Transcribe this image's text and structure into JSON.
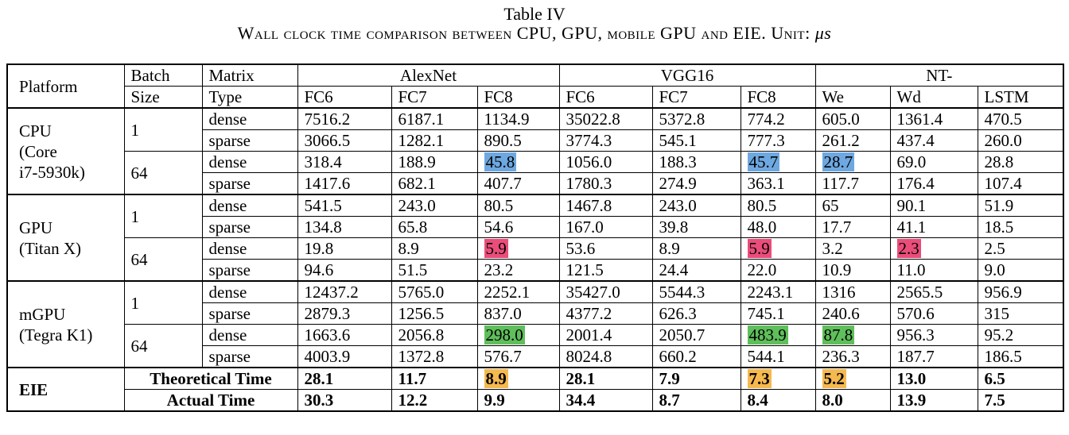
{
  "caption": {
    "line1": "Table IV",
    "line2_prefix": "Wall clock time comparison between CPU, GPU, mobile GPU and EIE. Unit: ",
    "line2_unit": "μs"
  },
  "headers": {
    "platform": "Platform",
    "batch_size_1": "Batch",
    "batch_size_2": "Size",
    "matrix_type_1": "Matrix",
    "matrix_type_2": "Type",
    "groups": [
      "AlexNet",
      "VGG16",
      "NT-"
    ],
    "columns": [
      "FC6",
      "FC7",
      "FC8",
      "FC6",
      "FC7",
      "FC8",
      "We",
      "Wd",
      "LSTM"
    ]
  },
  "platforms": [
    {
      "name_lines": [
        "CPU",
        "(Core",
        "i7-5930k)"
      ],
      "batches": [
        {
          "batch": "1",
          "rows": [
            {
              "type": "dense",
              "values": [
                "7516.2",
                "6187.1",
                "1134.9",
                "35022.8",
                "5372.8",
                "774.2",
                "605.0",
                "1361.4",
                "470.5"
              ],
              "hl": [
                null,
                null,
                null,
                null,
                null,
                null,
                null,
                null,
                null
              ]
            },
            {
              "type": "sparse",
              "values": [
                "3066.5",
                "1282.1",
                "890.5",
                "3774.3",
                "545.1",
                "777.3",
                "261.2",
                "437.4",
                "260.0"
              ],
              "hl": [
                null,
                null,
                null,
                null,
                null,
                null,
                null,
                null,
                null
              ]
            }
          ]
        },
        {
          "batch": "64",
          "rows": [
            {
              "type": "dense",
              "values": [
                "318.4",
                "188.9",
                "45.8",
                "1056.0",
                "188.3",
                "45.7",
                "28.7",
                "69.0",
                "28.8"
              ],
              "hl": [
                null,
                null,
                "blue",
                null,
                null,
                "blue",
                "blue",
                null,
                null
              ]
            },
            {
              "type": "sparse",
              "values": [
                "1417.6",
                "682.1",
                "407.7",
                "1780.3",
                "274.9",
                "363.1",
                "117.7",
                "176.4",
                "107.4"
              ],
              "hl": [
                null,
                null,
                null,
                null,
                null,
                null,
                null,
                null,
                null
              ]
            }
          ]
        }
      ]
    },
    {
      "name_lines": [
        "GPU",
        "(Titan X)"
      ],
      "batches": [
        {
          "batch": "1",
          "rows": [
            {
              "type": "dense",
              "values": [
                "541.5",
                "243.0",
                "80.5",
                "1467.8",
                "243.0",
                "80.5",
                "65",
                "90.1",
                "51.9"
              ],
              "hl": [
                null,
                null,
                null,
                null,
                null,
                null,
                null,
                null,
                null
              ]
            },
            {
              "type": "sparse",
              "values": [
                "134.8",
                "65.8",
                "54.6",
                "167.0",
                "39.8",
                "48.0",
                "17.7",
                "41.1",
                "18.5"
              ],
              "hl": [
                null,
                null,
                null,
                null,
                null,
                null,
                null,
                null,
                null
              ]
            }
          ]
        },
        {
          "batch": "64",
          "rows": [
            {
              "type": "dense",
              "values": [
                "19.8",
                "8.9",
                "5.9",
                "53.6",
                "8.9",
                "5.9",
                "3.2",
                "2.3",
                "2.5"
              ],
              "hl": [
                null,
                null,
                "red",
                null,
                null,
                "red",
                null,
                "red",
                null
              ]
            },
            {
              "type": "sparse",
              "values": [
                "94.6",
                "51.5",
                "23.2",
                "121.5",
                "24.4",
                "22.0",
                "10.9",
                "11.0",
                "9.0"
              ],
              "hl": [
                null,
                null,
                null,
                null,
                null,
                null,
                null,
                null,
                null
              ]
            }
          ]
        }
      ]
    },
    {
      "name_lines": [
        "mGPU",
        "(Tegra K1)"
      ],
      "batches": [
        {
          "batch": "1",
          "rows": [
            {
              "type": "dense",
              "values": [
                "12437.2",
                "5765.0",
                "2252.1",
                "35427.0",
                "5544.3",
                "2243.1",
                "1316",
                "2565.5",
                "956.9"
              ],
              "hl": [
                null,
                null,
                null,
                null,
                null,
                null,
                null,
                null,
                null
              ]
            },
            {
              "type": "sparse",
              "values": [
                "2879.3",
                "1256.5",
                "837.0",
                "4377.2",
                "626.3",
                "745.1",
                "240.6",
                "570.6",
                "315"
              ],
              "hl": [
                null,
                null,
                null,
                null,
                null,
                null,
                null,
                null,
                null
              ]
            }
          ]
        },
        {
          "batch": "64",
          "rows": [
            {
              "type": "dense",
              "values": [
                "1663.6",
                "2056.8",
                "298.0",
                "2001.4",
                "2050.7",
                "483.9",
                "87.8",
                "956.3",
                "95.2"
              ],
              "hl": [
                null,
                null,
                "green",
                null,
                null,
                "green",
                "green",
                null,
                null
              ]
            },
            {
              "type": "sparse",
              "values": [
                "4003.9",
                "1372.8",
                "576.7",
                "8024.8",
                "660.2",
                "544.1",
                "236.3",
                "187.7",
                "186.5"
              ],
              "hl": [
                null,
                null,
                null,
                null,
                null,
                null,
                null,
                null,
                null
              ]
            }
          ]
        }
      ]
    }
  ],
  "eie": {
    "name": "EIE",
    "rows": [
      {
        "label": "Theoretical Time",
        "values": [
          "28.1",
          "11.7",
          "8.9",
          "28.1",
          "7.9",
          "7.3",
          "5.2",
          "13.0",
          "6.5"
        ],
        "hl": [
          null,
          null,
          "orange",
          null,
          null,
          "orange",
          "orange",
          null,
          null
        ]
      },
      {
        "label": "Actual Time",
        "values": [
          "30.3",
          "12.2",
          "9.9",
          "34.4",
          "8.7",
          "8.4",
          "8.0",
          "13.9",
          "7.5"
        ],
        "hl": [
          null,
          null,
          null,
          null,
          null,
          null,
          null,
          null,
          null
        ]
      }
    ]
  },
  "highlight_colors": {
    "blue": "#6ea8e0",
    "red": "#ea4d7a",
    "green": "#5fbf5b",
    "orange": "#f5b94f"
  }
}
